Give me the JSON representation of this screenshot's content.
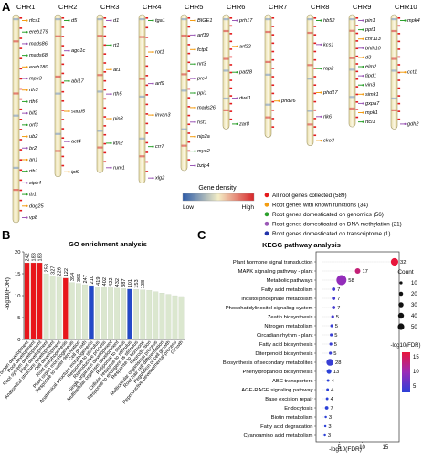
{
  "panels": {
    "a": "A",
    "b": "B",
    "c": "C"
  },
  "colors": {
    "all": "#e41a1c",
    "known": "#f39c12",
    "genomics": "#2ca02c",
    "methylation": "#9b59b6",
    "transcriptome": "#2233aa",
    "chrom_fill": "#f3edc9",
    "chrom_edge": "#a39a6d",
    "go_red": "#e8161b",
    "go_blue": "#2449c8",
    "go_grey": "#dbe7cf",
    "kegg_line": "#e05050"
  },
  "chromosomes": [
    {
      "name": "CHR1",
      "len": 1.0,
      "genes": [
        "rfcs1",
        "ereb179",
        "mads86",
        "mads68",
        "ereb180",
        "mpk3",
        "rth3",
        "rth6",
        "bif2",
        "orf3",
        "ub2",
        "br2",
        "an1",
        "rth1",
        "cipk4",
        "tb1",
        "dog25",
        "vp8"
      ]
    },
    {
      "name": "CHR2",
      "len": 0.78,
      "genes": [
        "d5",
        "ago1c",
        "abi17",
        "sacd5",
        "act4",
        "ipt9"
      ]
    },
    {
      "name": "CHR3",
      "len": 0.76,
      "genes": [
        "d1",
        "rt1",
        "at1",
        "rth5",
        "pin8",
        "ktn2",
        "rum1"
      ]
    },
    {
      "name": "CHR4",
      "len": 0.81,
      "genes": [
        "tga1",
        "rot1",
        "arf9",
        "invan3",
        "crr7",
        "xlg2"
      ]
    },
    {
      "name": "CHR5",
      "len": 0.75,
      "genes": [
        "BIGE1",
        "arf19",
        "fctp1",
        "nrt3",
        "prc4",
        "ppi1",
        "mads26",
        "hsf1",
        "nip2a",
        "myo2",
        "bzip4"
      ]
    },
    {
      "name": "CHR6",
      "len": 0.55,
      "genes": [
        "prh17",
        "arf22",
        "pat28",
        "dwil1",
        "zar8"
      ]
    },
    {
      "name": "CHR7",
      "len": 0.59,
      "genes": [
        "phd26"
      ]
    },
    {
      "name": "CHR8",
      "len": 0.63,
      "genes": [
        "hb52",
        "kcs1",
        "rap2",
        "phd17",
        "rlk6",
        "cko3"
      ]
    },
    {
      "name": "CHR9",
      "len": 0.54,
      "genes": [
        "pin1",
        "ppt1",
        "chr113",
        "bhlh10",
        "d3",
        "elm2",
        "tipd1",
        "vin3",
        "simk1",
        "gxpa7",
        "mpk1",
        "rtcl1"
      ]
    },
    {
      "name": "CHR10",
      "len": 0.55,
      "genes": [
        "mpk4",
        "cct1",
        "gdh2"
      ]
    }
  ],
  "density_legend": {
    "title": "Gene density",
    "low": "Low",
    "high": "High"
  },
  "legend": [
    {
      "label": "All root genes collected (589)",
      "color": "#e41a1c"
    },
    {
      "label": "Root genes with known functions (34)",
      "color": "#f39c12"
    },
    {
      "label": "Root genes domesticated on genomics (56)",
      "color": "#2ca02c"
    },
    {
      "label": "Root genes domesticated on DNA methylation (21)",
      "color": "#9b59b6"
    },
    {
      "label": "Root genes domesticated on transcriptome (1)",
      "color": "#2233aa"
    }
  ],
  "go_chart": {
    "type": "bar",
    "title": "GO enrichment analysis",
    "ylabel": "-log10(FDR)",
    "categories": [
      "Plant organ development",
      "Root development",
      "Root system development",
      "Plant development",
      "Anatomical structure development",
      "Cell development",
      "Root morphogenesis",
      "Plant organ morphogenesis",
      "Response to water deprivation",
      "Cell growth",
      "Anatomical structure morphogenesis",
      "Response to stimulus",
      "Reproductive process",
      "Single-organism development",
      "Multicellular organism development",
      "Response to stress",
      "Cellular response to stimulus",
      "Response to endogenous stimulus",
      "Response to hormone",
      "Reproduction",
      "Multicellular organismal process",
      "Root hair cell differentiation",
      "Regulation of cell growth",
      "Reproductive developmental process",
      "Growth"
    ],
    "labels": [
      "242",
      "183",
      "183",
      "258",
      "327",
      "226",
      "122",
      "394",
      "366",
      "247",
      "210",
      "419",
      "402",
      "422",
      "432",
      "387",
      "101",
      "153",
      "138",
      "",
      "",
      "",
      "",
      "",
      ""
    ],
    "values": [
      17.5,
      17.5,
      17.5,
      15,
      14.5,
      14.2,
      14.0,
      13.0,
      12.8,
      12.5,
      12.3,
      12.0,
      11.9,
      11.8,
      11.7,
      11.6,
      11.5,
      11.4,
      11.3,
      11.2,
      10.9,
      10.6,
      10.3,
      10.0,
      9.8
    ],
    "colors": [
      "red",
      "red",
      "red",
      "grey",
      "grey",
      "grey",
      "red",
      "grey",
      "grey",
      "grey",
      "blue",
      "grey",
      "grey",
      "grey",
      "grey",
      "grey",
      "blue",
      "grey",
      "grey",
      "grey",
      "grey",
      "grey",
      "grey",
      "grey",
      "grey"
    ],
    "ylim": [
      0,
      20
    ]
  },
  "kegg_chart": {
    "type": "scatter",
    "title": "KEGG pathway analysis",
    "xlabel": "-log10(FDR)",
    "xticks": [
      5,
      10,
      15
    ],
    "xlim": [
      0,
      18
    ],
    "categories": [
      "Plant hormone signal transduction",
      "MAPK signaling pathway - plant",
      "Metabolic pathways",
      "Fatty acid metabolism",
      "Inositol phosphate metabolism",
      "Phosphatidylinositol signaling system",
      "Zeatin biosynthesis",
      "Nitrogen metabolism",
      "Circadian rhythm - plant",
      "Fatty acid biosynthesis",
      "Diterpenoid biosynthesis",
      "Biosynthesis of secondary metabolites",
      "Phenylpropanoid biosynthesis",
      "ABC transporters",
      "AGE-RAGE signaling pathway",
      "Base excision repair",
      "Endocytosis",
      "Biotin metabolism",
      "Fatty acid degradation",
      "Cyanoamino acid metabolism"
    ],
    "x": [
      17,
      9,
      5.5,
      3.8,
      3.8,
      3.8,
      3.6,
      3.4,
      3.3,
      3.2,
      3.1,
      3.0,
      2.8,
      2.6,
      2.5,
      2.4,
      2.3,
      2.1,
      2.0,
      1.9
    ],
    "counts": [
      32,
      17,
      58,
      7,
      7,
      7,
      5,
      5,
      5,
      5,
      5,
      28,
      13,
      4,
      4,
      4,
      7,
      3,
      3,
      3
    ],
    "fdr_color": [
      19,
      15,
      10,
      4,
      4,
      4,
      4,
      3,
      3,
      3,
      3,
      3,
      2,
      2,
      2,
      2,
      2,
      2,
      2,
      2
    ],
    "threshold": 1.3,
    "size_legend": {
      "title": "Count",
      "values": [
        10,
        20,
        30,
        40,
        50
      ]
    },
    "color_legend": {
      "title": "-log10(FDR)",
      "ticks": [
        15,
        10,
        5
      ]
    }
  }
}
